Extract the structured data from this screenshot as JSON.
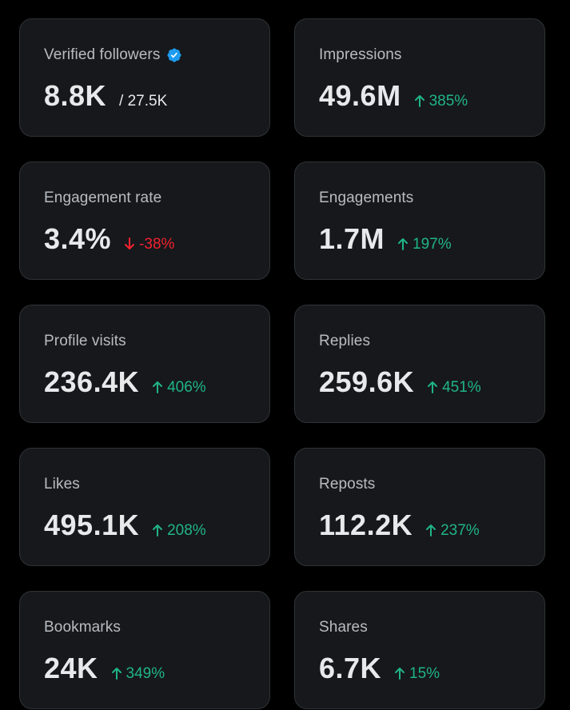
{
  "cards": [
    {
      "label": "Verified followers",
      "value": "8.8K",
      "sub": "/ 27.5K",
      "verified": true
    },
    {
      "label": "Impressions",
      "value": "49.6M",
      "change": "385%",
      "direction": "up"
    },
    {
      "label": "Engagement rate",
      "value": "3.4%",
      "change": "-38%",
      "direction": "down"
    },
    {
      "label": "Engagements",
      "value": "1.7M",
      "change": "197%",
      "direction": "up"
    },
    {
      "label": "Profile visits",
      "value": "236.4K",
      "change": "406%",
      "direction": "up"
    },
    {
      "label": "Replies",
      "value": "259.6K",
      "change": "451%",
      "direction": "up"
    },
    {
      "label": "Likes",
      "value": "495.1K",
      "change": "208%",
      "direction": "up"
    },
    {
      "label": "Reposts",
      "value": "112.2K",
      "change": "237%",
      "direction": "up"
    },
    {
      "label": "Bookmarks",
      "value": "24K",
      "change": "349%",
      "direction": "up"
    },
    {
      "label": "Shares",
      "value": "6.7K",
      "change": "15%",
      "direction": "up"
    }
  ],
  "icons": {
    "verified": "verified-badge-icon",
    "up": "arrow-up-icon",
    "down": "arrow-down-icon"
  },
  "colors": {
    "background": "#000000",
    "card": "#16181c",
    "card_border": "#2f3336",
    "label": "#b8bcc0",
    "value": "#e7e9ea",
    "positive": "#20b486",
    "negative": "#f4212e",
    "verified": "#1d9bf0"
  }
}
